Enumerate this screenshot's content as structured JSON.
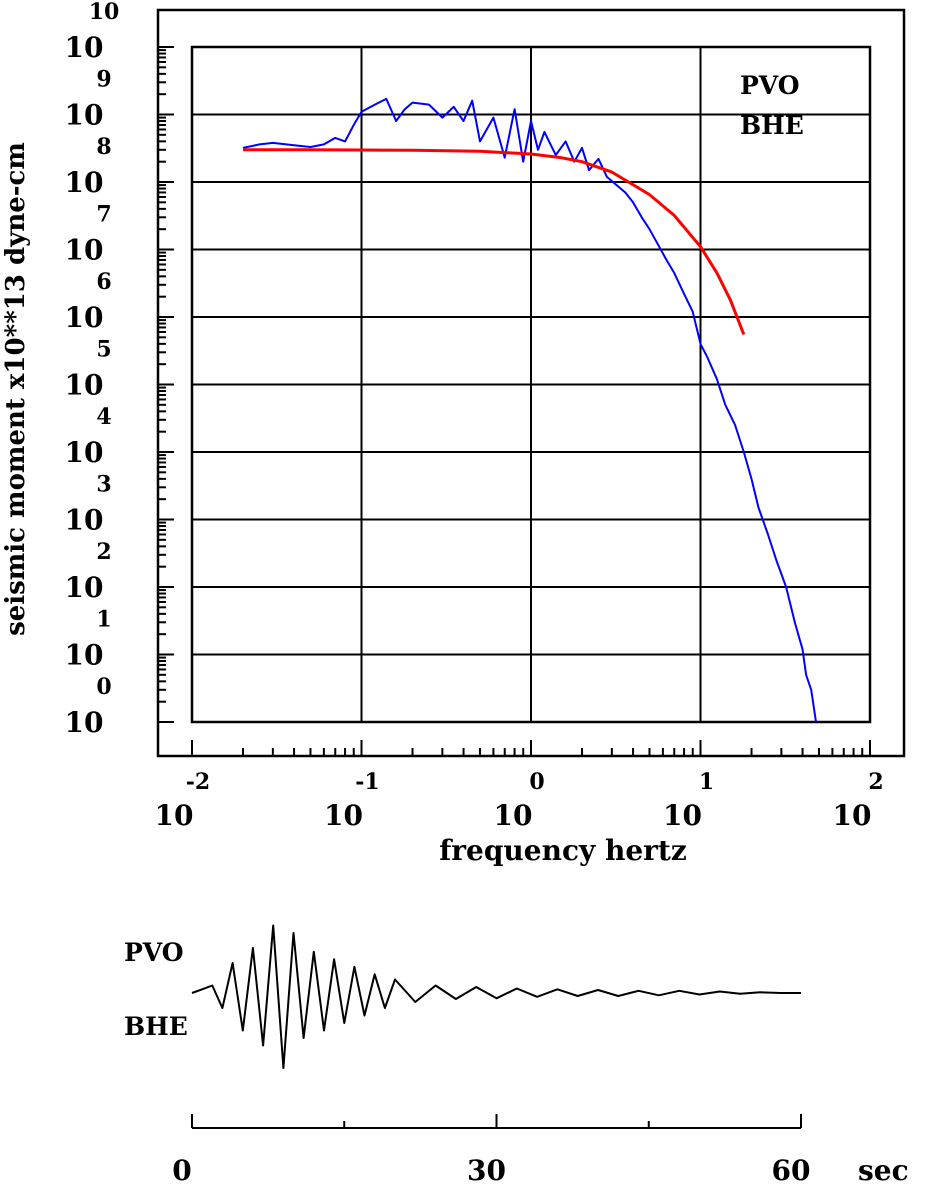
{
  "chart_data": [
    {
      "type": "line",
      "title": "",
      "xlabel": "frequency hertz",
      "ylabel": "seismic moment x10**13 dyne-cm",
      "x_scale": "log",
      "y_scale": "log",
      "xlim": [
        0.01,
        100
      ],
      "ylim": [
        1,
        10000000000
      ],
      "grid": true,
      "x_ticks": [
        {
          "base": "10",
          "exp": "-2"
        },
        {
          "base": "10",
          "exp": "-1"
        },
        {
          "base": "10",
          "exp": "0"
        },
        {
          "base": "10",
          "exp": "1"
        },
        {
          "base": "10",
          "exp": "2"
        }
      ],
      "y_ticks": [
        {
          "base": "10",
          "exp": "0"
        },
        {
          "base": "10",
          "exp": "1"
        },
        {
          "base": "10",
          "exp": "2"
        },
        {
          "base": "10",
          "exp": "3"
        },
        {
          "base": "10",
          "exp": "4"
        },
        {
          "base": "10",
          "exp": "5"
        },
        {
          "base": "10",
          "exp": "6"
        },
        {
          "base": "10",
          "exp": "7"
        },
        {
          "base": "10",
          "exp": "8"
        },
        {
          "base": "10",
          "exp": "9"
        },
        {
          "base": "10",
          "exp": "10"
        }
      ],
      "annotations": [
        "PVO",
        "BHE"
      ],
      "series": [
        {
          "color": "#0000ff",
          "x": [
            0.02,
            0.025,
            0.03,
            0.04,
            0.05,
            0.06,
            0.07,
            0.08,
            0.09,
            0.1,
            0.12,
            0.14,
            0.16,
            0.18,
            0.2,
            0.25,
            0.3,
            0.35,
            0.4,
            0.45,
            0.5,
            0.6,
            0.7,
            0.8,
            0.9,
            1.0,
            1.1,
            1.2,
            1.4,
            1.6,
            1.8,
            2.0,
            2.2,
            2.5,
            2.8,
            3.2,
            3.6,
            4.0,
            4.5,
            5.0,
            5.6,
            6.3,
            7.0,
            8.0,
            9.0,
            10.0,
            11.0,
            12.5,
            14.0,
            16.0,
            18.0,
            20.0,
            22.0,
            25.0,
            28.0,
            32.0,
            36.0,
            40.0,
            42.0,
            45.0,
            48.0
          ],
          "y": [
            320000000.0,
            360000000.0,
            380000000.0,
            350000000.0,
            330000000.0,
            360000000.0,
            450000000.0,
            400000000.0,
            700000000.0,
            1100000000.0,
            1400000000.0,
            1700000000.0,
            800000000.0,
            1200000000.0,
            1500000000.0,
            1400000000.0,
            900000000.0,
            1300000000.0,
            800000000.0,
            1600000000.0,
            400000000.0,
            900000000.0,
            230000000.0,
            1200000000.0,
            200000000.0,
            800000000.0,
            300000000.0,
            550000000.0,
            250000000.0,
            400000000.0,
            200000000.0,
            320000000.0,
            150000000.0,
            220000000.0,
            120000000.0,
            90000000.0,
            70000000.0,
            50000000.0,
            30000000.0,
            20000000.0,
            12000000.0,
            7000000.0,
            4500000.0,
            2200000.0,
            1200000.0,
            400000.0,
            250000.0,
            120000.0,
            50000.0,
            25000.0,
            10000.0,
            4000.0,
            1500.0,
            600.0,
            250.0,
            100.0,
            30.0,
            12.0,
            5.0,
            3.0,
            1.0
          ]
        },
        {
          "color": "#ff0000",
          "x": [
            0.02,
            0.05,
            0.1,
            0.2,
            0.5,
            1.0,
            1.5,
            2.0,
            3.0,
            5.0,
            7.0,
            10.0,
            12.5,
            15.0,
            18.0
          ],
          "y": [
            300000000.0,
            300000000.0,
            298000000.0,
            295000000.0,
            285000000.0,
            260000000.0,
            230000000.0,
            200000000.0,
            140000000.0,
            65000000.0,
            32000000.0,
            11000000.0,
            4500000.0,
            1800000.0,
            550000.0
          ]
        }
      ]
    },
    {
      "type": "line",
      "title": "",
      "xlabel": "",
      "ylabel": "",
      "xlim": [
        0,
        60
      ],
      "x_ticks": [
        "0",
        "30",
        "60"
      ],
      "unit": "sec",
      "annotations": [
        "PVO",
        "BHE"
      ],
      "series": [
        {
          "color": "#000000",
          "x": [
            0,
            1,
            2,
            3,
            4,
            5,
            6,
            7,
            8,
            9,
            10,
            11,
            12,
            13,
            14,
            15,
            16,
            17,
            18,
            19,
            20,
            22,
            24,
            26,
            28,
            30,
            32,
            34,
            36,
            38,
            40,
            42,
            44,
            46,
            48,
            50,
            52,
            54,
            56,
            58,
            60
          ],
          "y": [
            0,
            0.05,
            0.1,
            -0.2,
            0.4,
            -0.5,
            0.6,
            -0.7,
            0.9,
            -1.0,
            0.8,
            -0.6,
            0.55,
            -0.5,
            0.45,
            -0.4,
            0.35,
            -0.3,
            0.25,
            -0.2,
            0.18,
            -0.12,
            0.1,
            -0.08,
            0.08,
            -0.07,
            0.06,
            -0.05,
            0.05,
            -0.04,
            0.04,
            -0.04,
            0.03,
            -0.03,
            0.03,
            -0.02,
            0.02,
            -0.01,
            0.01,
            0.0,
            0.0
          ]
        }
      ]
    }
  ]
}
